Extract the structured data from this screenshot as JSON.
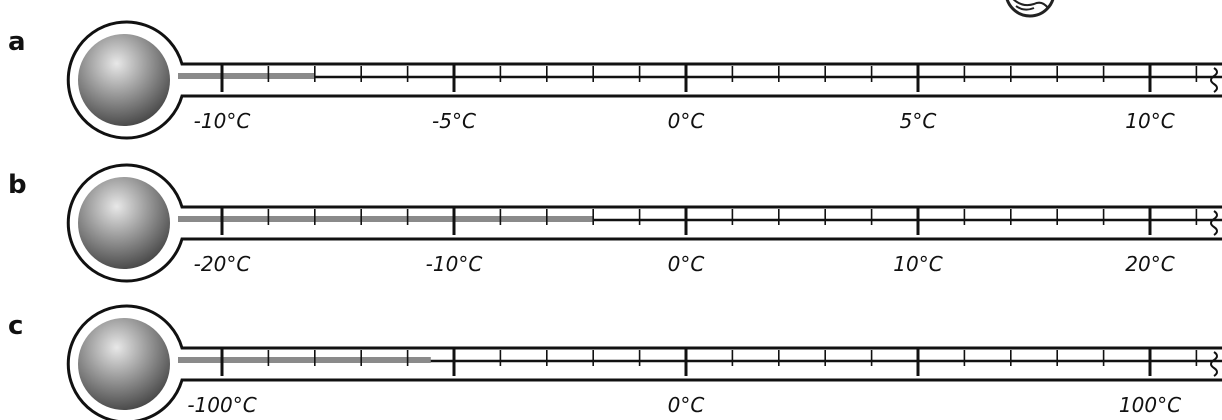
{
  "thermometers": [
    {
      "id": "a",
      "letter": "a",
      "min": -12,
      "max": 11.5,
      "major_step": 5,
      "minor_step": 1,
      "reading": -8,
      "scale_labels": [
        {
          "value": -10,
          "text": "-10°C"
        },
        {
          "value": -5,
          "text": "-5°C"
        },
        {
          "value": 0,
          "text": "0°C"
        },
        {
          "value": 5,
          "text": "5°C"
        },
        {
          "value": 10,
          "text": "10°C"
        }
      ]
    },
    {
      "id": "b",
      "letter": "b",
      "min": -24,
      "max": 23,
      "major_step": 10,
      "minor_step": 2,
      "reading": -4,
      "scale_labels": [
        {
          "value": -20,
          "text": "-20°C"
        },
        {
          "value": -10,
          "text": "-10°C"
        },
        {
          "value": 0,
          "text": "0°C"
        },
        {
          "value": 10,
          "text": "10°C"
        },
        {
          "value": 20,
          "text": "20°C"
        }
      ]
    },
    {
      "id": "c",
      "letter": "c",
      "min": -120,
      "max": 115,
      "major_step": 50,
      "minor_step": 10,
      "reading": -55,
      "scale_labels": [
        {
          "value": -100,
          "text": "-100°C"
        },
        {
          "value": 0,
          "text": "0°C"
        },
        {
          "value": 100,
          "text": "100°C"
        }
      ]
    }
  ],
  "colors": {
    "outline": "#111111",
    "liquid": "#8a8a8a",
    "bulb_light": "#e6e6e6",
    "bulb_dark": "#3a3a3a"
  }
}
